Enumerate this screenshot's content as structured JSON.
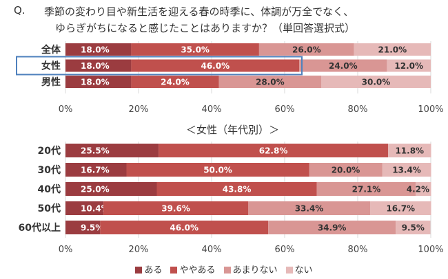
{
  "question": {
    "prefix": "Q.",
    "line1": "季節の変わり目や新生活を迎える春の時季に、体調が万全でなく、",
    "line2": "ゆらぎがちになると感じたことはありますか？（単回答選択式）"
  },
  "subtitle": "＜女性（年代別）＞",
  "legend": [
    {
      "label": "ある",
      "color": "#9b3c40"
    },
    {
      "label": "ややある",
      "color": "#c0504d"
    },
    {
      "label": "あまりない",
      "color": "#d99694"
    },
    {
      "label": "ない",
      "color": "#e6b9b8"
    }
  ],
  "highlight": {
    "row": "女性",
    "color": "#4f81bd"
  },
  "chart_data": [
    {
      "type": "bar",
      "orientation": "horizontal",
      "stacked": true,
      "categories": [
        "全体",
        "女性",
        "男性"
      ],
      "series": [
        {
          "name": "ある",
          "values": [
            18.0,
            18.0,
            18.0
          ],
          "labels": [
            "18.0%",
            "18.0%",
            "18.0%"
          ]
        },
        {
          "name": "ややある",
          "values": [
            35.0,
            46.0,
            24.0
          ],
          "labels": [
            "35.0%",
            "46.0%",
            "24.0%"
          ]
        },
        {
          "name": "あまりない",
          "values": [
            26.0,
            24.0,
            28.0
          ],
          "labels": [
            "26.0%",
            "24.0%",
            "28.0%"
          ]
        },
        {
          "name": "ない",
          "values": [
            21.0,
            12.0,
            30.0
          ],
          "labels": [
            "21.0%",
            "12.0%",
            "30.0%"
          ]
        }
      ],
      "xlim": [
        0,
        100
      ],
      "xticks": [
        "0%",
        "20%",
        "40%",
        "60%",
        "80%",
        "100%"
      ],
      "grid": true
    },
    {
      "type": "bar",
      "orientation": "horizontal",
      "stacked": true,
      "title": "＜女性（年代別）＞",
      "categories": [
        "20代",
        "30代",
        "40代",
        "50代",
        "60代以上"
      ],
      "series": [
        {
          "name": "ある",
          "values": [
            25.5,
            16.7,
            25.0,
            10.4,
            9.5
          ],
          "labels": [
            "25.5%",
            "16.7%",
            "25.0%",
            "10.4%",
            "9.5%"
          ]
        },
        {
          "name": "ややある",
          "values": [
            62.8,
            50.0,
            43.8,
            39.6,
            46.0
          ],
          "labels": [
            "62.8%",
            "50.0%",
            "43.8%",
            "39.6%",
            "46.0%"
          ]
        },
        {
          "name": "あまりない",
          "values": [
            0.0,
            20.0,
            27.1,
            33.4,
            34.9
          ],
          "labels": [
            "",
            "20.0%",
            "27.1%",
            "33.4%",
            "34.9%"
          ]
        },
        {
          "name": "ない",
          "values": [
            11.8,
            13.4,
            4.2,
            16.7,
            9.5
          ],
          "labels": [
            "11.8%",
            "13.4%",
            "4.2%",
            "16.7%",
            "9.5%"
          ]
        }
      ],
      "xlim": [
        0,
        100
      ],
      "xticks": [
        "0%",
        "20%",
        "40%",
        "60%",
        "80%",
        "100%"
      ],
      "grid": true,
      "legend": "bottom"
    }
  ]
}
